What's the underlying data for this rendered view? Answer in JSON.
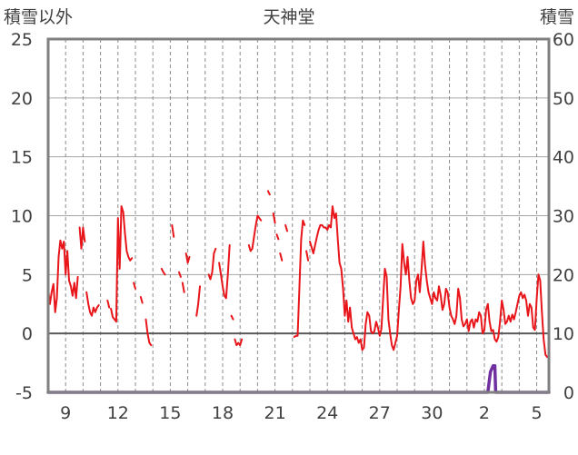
{
  "chart_data": {
    "type": "line",
    "title": "天神堂",
    "left_axis_label": "積雪以外",
    "right_axis_label": "積雪",
    "left_ylim": [
      -5,
      25
    ],
    "left_yticks": [
      25,
      20,
      15,
      10,
      5,
      0,
      -5
    ],
    "right_ylim": [
      0,
      60
    ],
    "right_yticks": [
      60,
      50,
      40,
      30,
      20,
      10,
      0
    ],
    "x_ticks": [
      "9",
      "12",
      "15",
      "18",
      "21",
      "24",
      "27",
      "30",
      "2",
      "5"
    ],
    "grid": "dashed-vertical-daily, solid-horizontal",
    "colors": {
      "temperature": "#e8161b",
      "snow": "#7030a0",
      "axis": "#808080",
      "zero": "#595959"
    },
    "series": [
      {
        "role": "temperature",
        "axis": "left",
        "segments": [
          [
            [
              0.0,
              3.8
            ],
            [
              0.1,
              2.5
            ],
            [
              0.2,
              3.5
            ],
            [
              0.3,
              4.2
            ],
            [
              0.4,
              1.8
            ],
            [
              0.5,
              3.0
            ],
            [
              0.6,
              6.5
            ],
            [
              0.7,
              7.9
            ],
            [
              0.8,
              7.2
            ],
            [
              0.9,
              7.8
            ],
            [
              1.0,
              5.0
            ],
            [
              1.1,
              7.0
            ],
            [
              1.2,
              4.5
            ],
            [
              1.3,
              4.0
            ],
            [
              1.4,
              3.2
            ],
            [
              1.5,
              4.3
            ],
            [
              1.6,
              3.0
            ],
            [
              1.7,
              4.8
            ]
          ],
          [
            [
              1.8,
              9.0
            ],
            [
              1.9,
              7.2
            ],
            [
              2.0,
              9.0
            ],
            [
              2.1,
              7.8
            ]
          ],
          [
            [
              2.2,
              3.5
            ],
            [
              2.3,
              2.5
            ],
            [
              2.4,
              1.8
            ],
            [
              2.5,
              1.5
            ],
            [
              2.6,
              2.2
            ],
            [
              2.7,
              1.8
            ],
            [
              2.8,
              2.2
            ],
            [
              2.9,
              2.4
            ]
          ],
          [
            [
              3.4,
              2.8
            ],
            [
              3.5,
              2.2
            ]
          ],
          [
            [
              3.6,
              2.1
            ],
            [
              3.7,
              1.4
            ],
            [
              3.8,
              1.2
            ],
            [
              3.9,
              1.0
            ],
            [
              4.0,
              9.8
            ],
            [
              4.1,
              5.5
            ],
            [
              4.2,
              10.8
            ],
            [
              4.3,
              10.3
            ],
            [
              4.4,
              8.5
            ],
            [
              4.5,
              7.0
            ],
            [
              4.6,
              6.5
            ],
            [
              4.7,
              6.2
            ],
            [
              4.8,
              6.4
            ]
          ],
          [
            [
              4.9,
              4.3
            ],
            [
              5.0,
              3.8
            ]
          ],
          [
            [
              5.3,
              3.1
            ],
            [
              5.4,
              2.6
            ]
          ],
          [
            [
              5.6,
              1.2
            ],
            [
              5.7,
              0.0
            ],
            [
              5.8,
              -0.8
            ],
            [
              5.9,
              -1.0
            ]
          ],
          [
            [
              6.5,
              5.5
            ],
            [
              6.6,
              5.2
            ],
            [
              6.7,
              5.0
            ]
          ],
          [
            [
              7.1,
              9.2
            ],
            [
              7.2,
              8.2
            ]
          ],
          [
            [
              7.5,
              5.2
            ],
            [
              7.6,
              4.8
            ]
          ],
          [
            [
              7.7,
              4.3
            ],
            [
              7.8,
              3.5
            ]
          ],
          [
            [
              7.9,
              6.8
            ],
            [
              8.0,
              6.0
            ],
            [
              8.1,
              6.5
            ]
          ],
          [
            [
              8.5,
              1.5
            ],
            [
              8.6,
              2.5
            ],
            [
              8.7,
              4.0
            ]
          ],
          [
            [
              9.2,
              5.0
            ],
            [
              9.3,
              4.6
            ],
            [
              9.4,
              5.2
            ],
            [
              9.5,
              6.8
            ],
            [
              9.6,
              7.2
            ]
          ],
          [
            [
              9.8,
              6.0
            ],
            [
              9.9,
              5.0
            ],
            [
              10.0,
              4.0
            ],
            [
              10.1,
              3.2
            ],
            [
              10.2,
              3.0
            ],
            [
              10.3,
              5.0
            ],
            [
              10.4,
              7.5
            ]
          ],
          [
            [
              10.5,
              1.5
            ],
            [
              10.6,
              1.2
            ]
          ],
          [
            [
              10.7,
              -0.5
            ],
            [
              10.8,
              -1.0
            ],
            [
              10.9,
              -0.8
            ],
            [
              11.0,
              -1.0
            ],
            [
              11.1,
              -0.5
            ]
          ],
          [
            [
              11.5,
              7.5
            ],
            [
              11.6,
              7.0
            ],
            [
              11.7,
              7.2
            ],
            [
              11.8,
              8.2
            ],
            [
              11.9,
              9.2
            ],
            [
              12.0,
              10.0
            ],
            [
              12.1,
              9.8
            ],
            [
              12.2,
              9.6
            ]
          ],
          [
            [
              12.6,
              12.1
            ],
            [
              12.7,
              11.8
            ]
          ],
          [
            [
              12.9,
              10.2
            ],
            [
              13.0,
              9.4
            ]
          ],
          [
            [
              13.1,
              8.4
            ],
            [
              13.2,
              8.0
            ]
          ],
          [
            [
              13.3,
              6.8
            ],
            [
              13.4,
              6.2
            ]
          ],
          [
            [
              13.6,
              9.2
            ],
            [
              13.7,
              8.7
            ]
          ],
          [
            [
              14.1,
              -0.3
            ],
            [
              14.2,
              -0.2
            ],
            [
              14.3,
              -0.2
            ],
            [
              14.4,
              4.0
            ],
            [
              14.5,
              8.0
            ],
            [
              14.6,
              9.6
            ],
            [
              14.7,
              9.2
            ]
          ],
          [
            [
              14.8,
              7.0
            ],
            [
              14.9,
              6.2
            ]
          ],
          [
            [
              15.0,
              7.8
            ],
            [
              15.1,
              7.3
            ],
            [
              15.2,
              6.8
            ],
            [
              15.3,
              7.5
            ],
            [
              15.4,
              8.2
            ],
            [
              15.5,
              8.8
            ],
            [
              15.6,
              9.2
            ],
            [
              15.7,
              9.2
            ],
            [
              15.8,
              9.0
            ],
            [
              15.9,
              9.0
            ],
            [
              16.0,
              8.8
            ],
            [
              16.1,
              9.2
            ],
            [
              16.2,
              9.0
            ],
            [
              16.3,
              10.8
            ],
            [
              16.4,
              9.8
            ],
            [
              16.5,
              10.2
            ],
            [
              16.6,
              8.0
            ],
            [
              16.7,
              6.0
            ],
            [
              16.8,
              5.5
            ],
            [
              16.9,
              3.8
            ],
            [
              17.0,
              1.5
            ],
            [
              17.1,
              2.8
            ],
            [
              17.2,
              1.0
            ],
            [
              17.3,
              2.2
            ],
            [
              17.4,
              0.5
            ],
            [
              17.5,
              0.0
            ],
            [
              17.6,
              -0.5
            ],
            [
              17.7,
              -0.3
            ],
            [
              17.8,
              -0.8
            ],
            [
              17.9,
              -0.5
            ],
            [
              18.0,
              -1.4
            ],
            [
              18.1,
              -1.2
            ],
            [
              18.2,
              0.8
            ],
            [
              18.3,
              1.8
            ],
            [
              18.4,
              1.5
            ],
            [
              18.5,
              0.2
            ],
            [
              18.6,
              0.0
            ],
            [
              18.7,
              0.2
            ],
            [
              18.8,
              1.0
            ],
            [
              18.9,
              0.5
            ],
            [
              19.0,
              -0.2
            ],
            [
              19.1,
              0.4
            ],
            [
              19.2,
              3.0
            ],
            [
              19.3,
              5.5
            ],
            [
              19.4,
              4.8
            ],
            [
              19.5,
              1.2
            ],
            [
              19.6,
              0.0
            ],
            [
              19.7,
              -1.0
            ],
            [
              19.8,
              -1.4
            ],
            [
              19.9,
              -0.8
            ],
            [
              20.0,
              -0.2
            ],
            [
              20.1,
              2.0
            ],
            [
              20.2,
              4.0
            ],
            [
              20.3,
              7.6
            ],
            [
              20.4,
              6.0
            ],
            [
              20.5,
              5.0
            ],
            [
              20.6,
              6.5
            ],
            [
              20.7,
              4.5
            ],
            [
              20.8,
              3.0
            ],
            [
              20.9,
              2.5
            ],
            [
              21.0,
              2.8
            ],
            [
              21.1,
              4.5
            ],
            [
              21.2,
              5.0
            ],
            [
              21.3,
              3.5
            ],
            [
              21.4,
              5.5
            ],
            [
              21.5,
              7.8
            ],
            [
              21.6,
              5.8
            ],
            [
              21.7,
              4.5
            ],
            [
              21.8,
              3.5
            ],
            [
              21.9,
              3.0
            ],
            [
              22.0,
              2.5
            ],
            [
              22.1,
              3.5
            ],
            [
              22.2,
              3.0
            ],
            [
              22.3,
              2.8
            ],
            [
              22.4,
              4.0
            ],
            [
              22.5,
              3.2
            ],
            [
              22.6,
              2.0
            ],
            [
              22.7,
              2.5
            ],
            [
              22.8,
              3.8
            ],
            [
              22.9,
              3.5
            ],
            [
              23.0,
              2.2
            ],
            [
              23.1,
              1.5
            ],
            [
              23.2,
              1.2
            ],
            [
              23.3,
              0.8
            ],
            [
              23.4,
              1.5
            ],
            [
              23.5,
              3.8
            ],
            [
              23.6,
              3.0
            ],
            [
              23.7,
              1.2
            ],
            [
              23.8,
              0.6
            ],
            [
              23.9,
              0.8
            ],
            [
              24.0,
              1.2
            ],
            [
              24.1,
              0.2
            ],
            [
              24.2,
              1.0
            ],
            [
              24.3,
              1.2
            ],
            [
              24.4,
              0.5
            ],
            [
              24.5,
              1.2
            ],
            [
              24.6,
              1.0
            ],
            [
              24.7,
              1.8
            ],
            [
              24.8,
              1.5
            ],
            [
              24.9,
              0.0
            ],
            [
              25.0,
              0.3
            ],
            [
              25.1,
              2.0
            ],
            [
              25.2,
              2.5
            ],
            [
              25.3,
              1.0
            ],
            [
              25.4,
              0.2
            ],
            [
              25.5,
              0.3
            ],
            [
              25.6,
              -0.5
            ],
            [
              25.7,
              -0.7
            ],
            [
              25.8,
              -0.3
            ],
            [
              25.9,
              1.0
            ],
            [
              26.0,
              2.8
            ],
            [
              26.1,
              2.0
            ],
            [
              26.2,
              0.8
            ],
            [
              26.3,
              1.0
            ],
            [
              26.4,
              1.5
            ],
            [
              26.5,
              1.0
            ],
            [
              26.6,
              1.6
            ],
            [
              26.7,
              1.2
            ],
            [
              26.8,
              1.8
            ],
            [
              26.9,
              2.5
            ],
            [
              27.0,
              3.2
            ],
            [
              27.1,
              3.5
            ],
            [
              27.2,
              3.0
            ],
            [
              27.3,
              3.3
            ],
            [
              27.4,
              2.8
            ],
            [
              27.5,
              1.5
            ],
            [
              27.6,
              2.5
            ],
            [
              27.7,
              2.2
            ],
            [
              27.8,
              0.5
            ],
            [
              27.9,
              0.3
            ],
            [
              28.0,
              3.0
            ],
            [
              28.1,
              5.0
            ],
            [
              28.2,
              4.5
            ],
            [
              28.3,
              1.8
            ],
            [
              28.4,
              -0.5
            ],
            [
              28.5,
              -1.8
            ],
            [
              28.6,
              -2.0
            ]
          ]
        ]
      },
      {
        "role": "snow",
        "axis": "right",
        "points": [
          [
            0.0,
            0
          ],
          [
            25.1,
            0
          ],
          [
            25.2,
            0
          ],
          [
            25.35,
            3.5
          ],
          [
            25.5,
            4.5
          ],
          [
            25.6,
            4.5
          ],
          [
            25.65,
            0
          ],
          [
            28.7,
            0
          ]
        ]
      }
    ]
  }
}
